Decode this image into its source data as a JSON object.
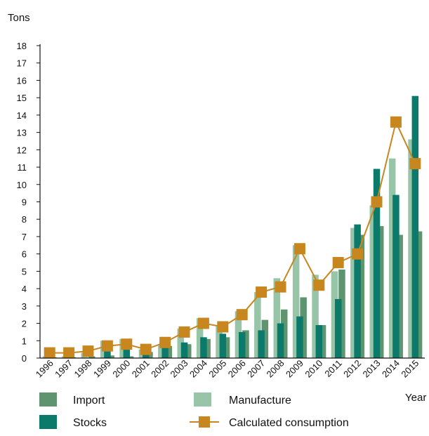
{
  "chart_data": {
    "type": "bar",
    "ylabel": "Tons",
    "xlabel": "Year",
    "ylim": [
      0,
      18
    ],
    "y_ticks": [
      0,
      1,
      2,
      3,
      4,
      5,
      6,
      7,
      8,
      9,
      10,
      11,
      12,
      13,
      14,
      15,
      16,
      17,
      18
    ],
    "categories": [
      "1996",
      "1997",
      "1998",
      "1999",
      "2000",
      "2001",
      "2002",
      "2003",
      "2004",
      "2005",
      "2006",
      "2007",
      "2008",
      "2009",
      "2010",
      "2011",
      "2012",
      "2013",
      "2014",
      "2015"
    ],
    "series": [
      {
        "name": "Import",
        "kind": "bar",
        "color": "#5e9470",
        "values": [
          0.05,
          0.05,
          0.1,
          0.15,
          0.1,
          0.35,
          0.7,
          0.8,
          1.1,
          1.2,
          1.6,
          2.2,
          2.8,
          3.5,
          1.9,
          5.1,
          7.1,
          7.6,
          7.1,
          7.3
        ]
      },
      {
        "name": "Manufacture",
        "kind": "bar",
        "color": "#98c4a8",
        "values": [
          0.1,
          0.1,
          0.3,
          1.0,
          1.1,
          0.5,
          0.8,
          1.7,
          2.3,
          1.9,
          2.7,
          3.8,
          4.6,
          6.5,
          4.8,
          5.0,
          7.5,
          8.8,
          11.5,
          12.6
        ]
      },
      {
        "name": "Stocks",
        "kind": "bar",
        "color": "#0b7a6a",
        "values": [
          0.0,
          0.0,
          0.0,
          0.4,
          0.5,
          0.3,
          0.6,
          0.9,
          1.2,
          1.4,
          1.5,
          1.6,
          2.0,
          2.4,
          1.9,
          3.4,
          7.7,
          10.9,
          9.4,
          15.1
        ]
      },
      {
        "name": "Calculated consumption",
        "kind": "line",
        "color": "#c8861e",
        "values": [
          0.3,
          0.3,
          0.4,
          0.7,
          0.8,
          0.5,
          0.9,
          1.5,
          2.0,
          1.8,
          2.5,
          3.8,
          4.1,
          6.3,
          4.2,
          5.5,
          6.0,
          9.0,
          13.6,
          11.2
        ]
      }
    ],
    "legend_position": "bottom",
    "grid": false
  }
}
